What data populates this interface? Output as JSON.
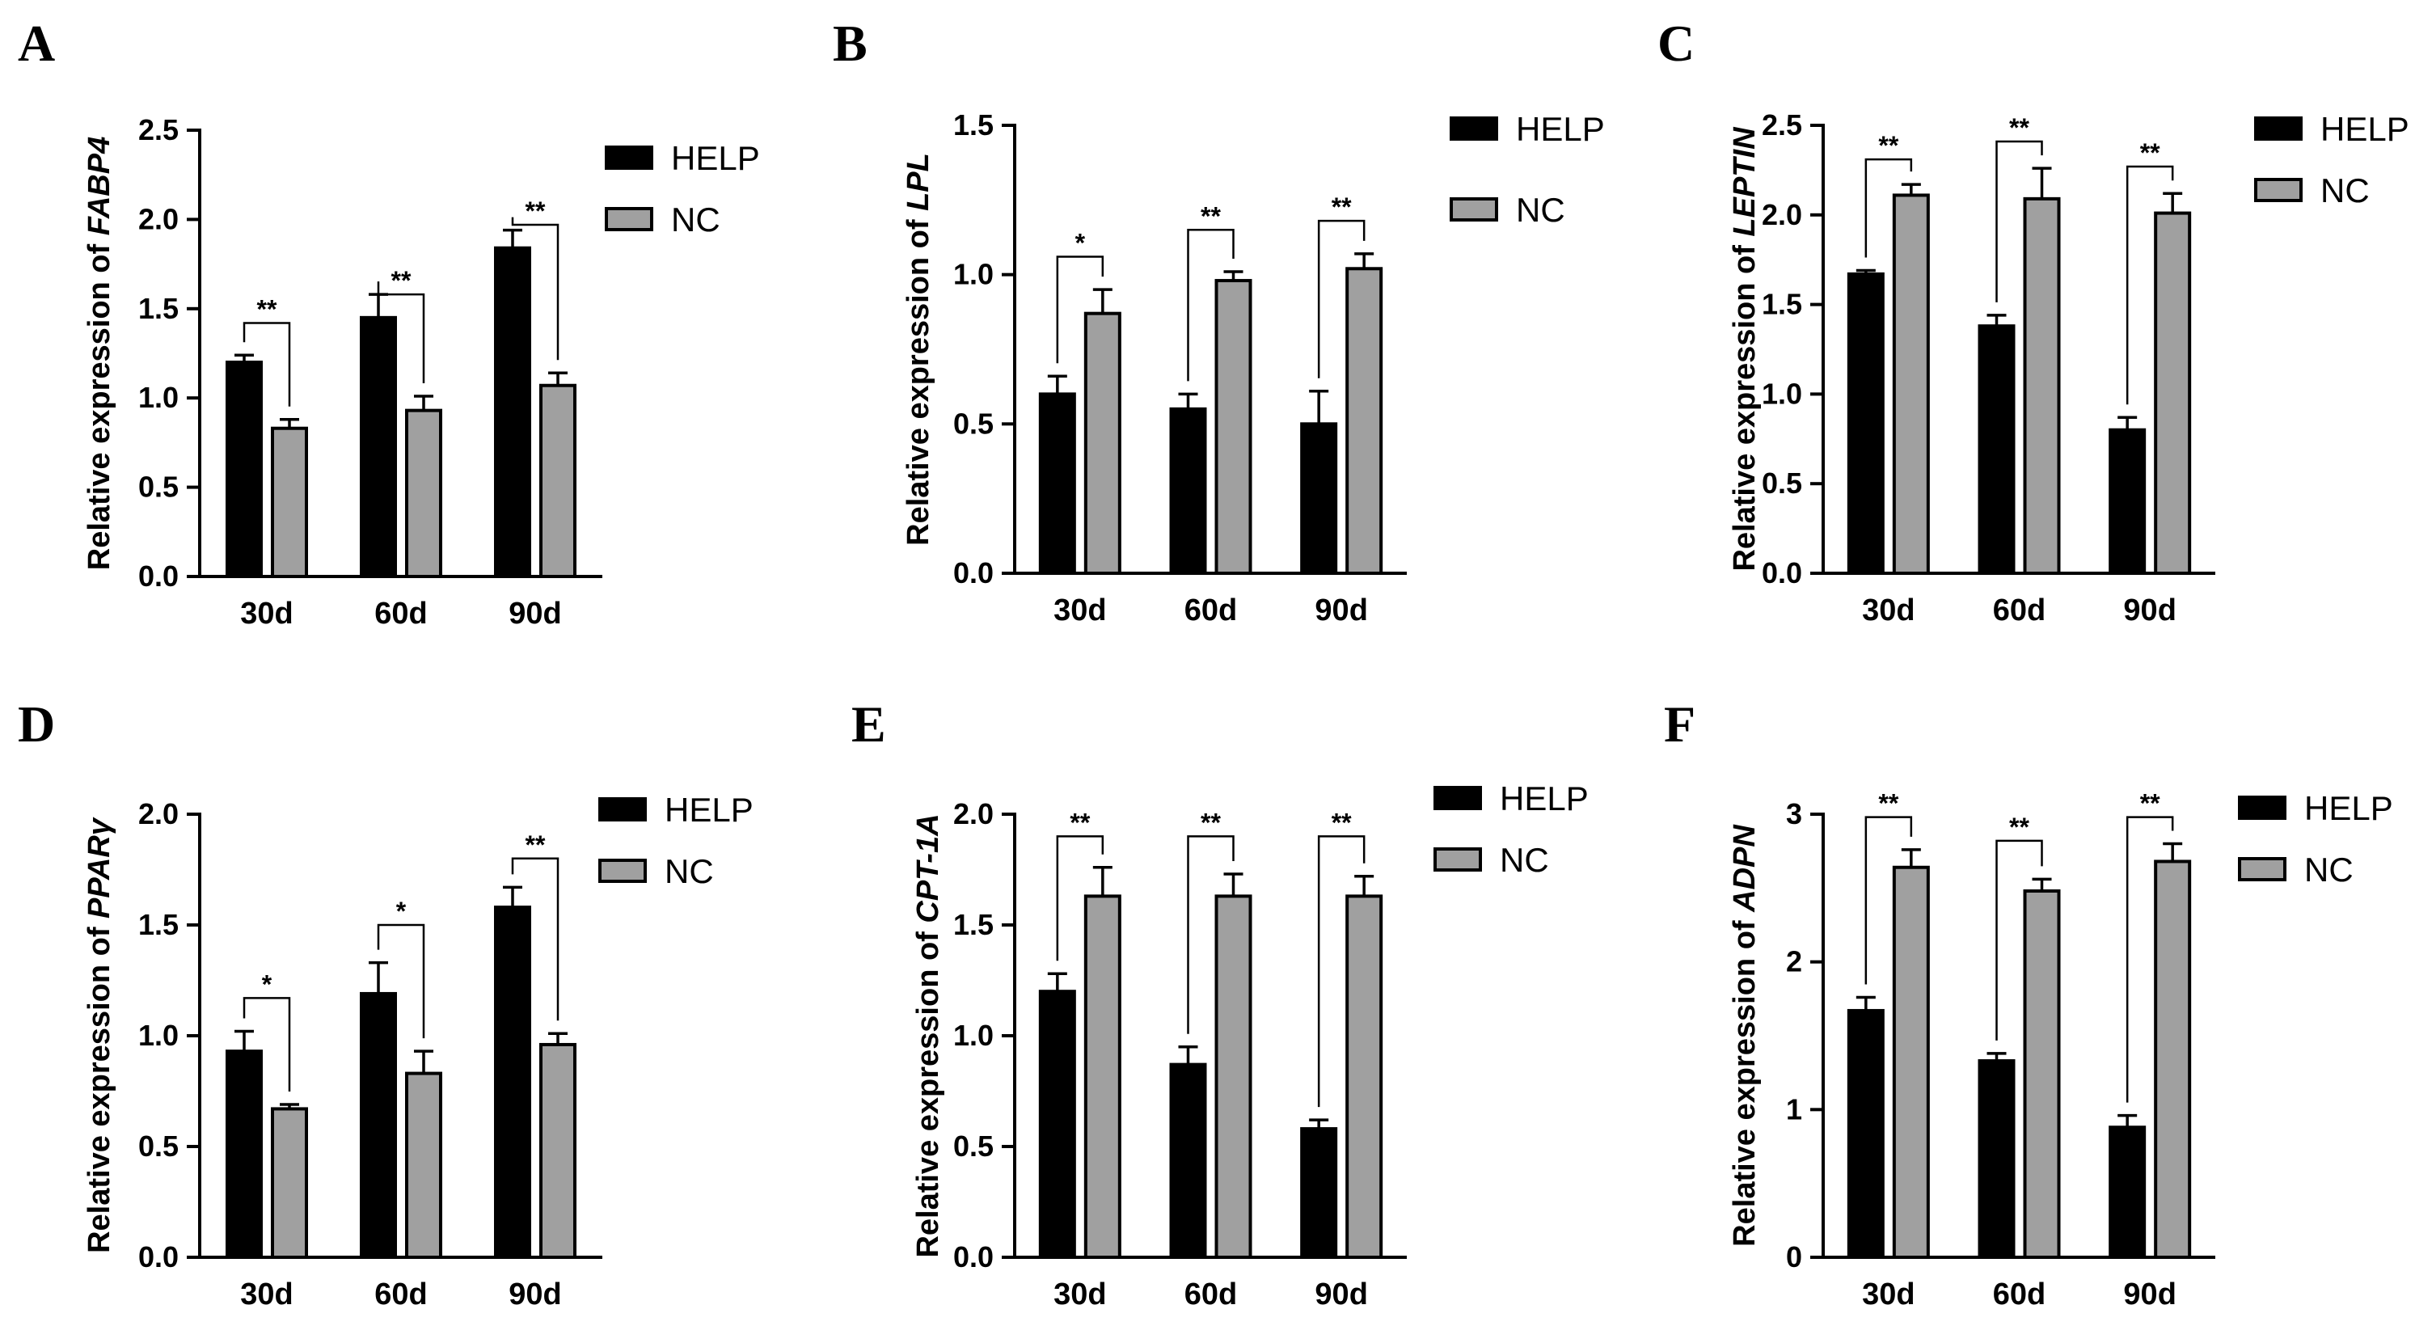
{
  "colors": {
    "help": "#000000",
    "nc": "#a0a0a0",
    "outline": "#000000"
  },
  "legend": {
    "series_a": "HELP",
    "series_b": "NC"
  },
  "chart_data": [
    {
      "panel": "A",
      "type": "bar",
      "ylabel_prefix": "Relative expression of ",
      "gene": "FABP4",
      "categories": [
        "30d",
        "60d",
        "90d"
      ],
      "yticks": [
        "0.0",
        "0.5",
        "1.0",
        "1.5",
        "2.0",
        "2.5"
      ],
      "ylim": [
        0,
        2.5
      ],
      "series": [
        {
          "name": "HELP",
          "values": [
            1.2,
            1.45,
            1.84
          ],
          "errors": [
            0.04,
            0.13,
            0.1
          ]
        },
        {
          "name": "NC",
          "values": [
            0.83,
            0.93,
            1.07
          ],
          "errors": [
            0.05,
            0.08,
            0.07
          ]
        }
      ],
      "significance": [
        "**",
        "**",
        "**"
      ],
      "bracket_tops": [
        1.42,
        1.58,
        1.97
      ]
    },
    {
      "panel": "B",
      "type": "bar",
      "ylabel_prefix": "Relative expression of ",
      "gene": "LPL",
      "categories": [
        "30d",
        "60d",
        "90d"
      ],
      "yticks": [
        "0.0",
        "0.5",
        "1.0",
        "1.5"
      ],
      "ylim": [
        0,
        1.5
      ],
      "series": [
        {
          "name": "HELP",
          "values": [
            0.6,
            0.55,
            0.5
          ],
          "errors": [
            0.06,
            0.05,
            0.11
          ]
        },
        {
          "name": "NC",
          "values": [
            0.87,
            0.98,
            1.02
          ],
          "errors": [
            0.08,
            0.03,
            0.05
          ]
        }
      ],
      "significance": [
        "*",
        "**",
        "**"
      ],
      "bracket_tops": [
        1.06,
        1.15,
        1.18
      ]
    },
    {
      "panel": "C",
      "type": "bar",
      "ylabel_prefix": "Relative expression of ",
      "gene": "LEPTIN",
      "categories": [
        "30d",
        "60d",
        "90d"
      ],
      "yticks": [
        "0.0",
        "0.5",
        "1.0",
        "1.5",
        "2.0",
        "2.5"
      ],
      "ylim": [
        0,
        2.5
      ],
      "series": [
        {
          "name": "HELP",
          "values": [
            1.67,
            1.38,
            0.8
          ],
          "errors": [
            0.02,
            0.06,
            0.07
          ]
        },
        {
          "name": "NC",
          "values": [
            2.11,
            2.09,
            2.01
          ],
          "errors": [
            0.06,
            0.17,
            0.11
          ]
        }
      ],
      "significance": [
        "**",
        "**",
        "**"
      ],
      "bracket_tops": [
        2.31,
        2.41,
        2.27
      ]
    },
    {
      "panel": "D",
      "type": "bar",
      "ylabel_prefix": "Relative expression of ",
      "gene": "PPARγ",
      "categories": [
        "30d",
        "60d",
        "90d"
      ],
      "yticks": [
        "0.0",
        "0.5",
        "1.0",
        "1.5",
        "2.0"
      ],
      "ylim": [
        0,
        2.0
      ],
      "series": [
        {
          "name": "HELP",
          "values": [
            0.93,
            1.19,
            1.58
          ],
          "errors": [
            0.09,
            0.14,
            0.09
          ]
        },
        {
          "name": "NC",
          "values": [
            0.67,
            0.83,
            0.96
          ],
          "errors": [
            0.02,
            0.1,
            0.05
          ]
        }
      ],
      "significance": [
        "*",
        "*",
        "**"
      ],
      "bracket_tops": [
        1.17,
        1.5,
        1.8
      ]
    },
    {
      "panel": "E",
      "type": "bar",
      "ylabel_prefix": "Relative expression of ",
      "gene": "CPT-1A",
      "categories": [
        "30d",
        "60d",
        "90d"
      ],
      "yticks": [
        "0.0",
        "0.5",
        "1.0",
        "1.5",
        "2.0"
      ],
      "ylim": [
        0,
        2.0
      ],
      "series": [
        {
          "name": "HELP",
          "values": [
            1.2,
            0.87,
            0.58
          ],
          "errors": [
            0.08,
            0.08,
            0.04
          ]
        },
        {
          "name": "NC",
          "values": [
            1.63,
            1.63,
            1.63
          ],
          "errors": [
            0.13,
            0.1,
            0.09
          ]
        }
      ],
      "significance": [
        "**",
        "**",
        "**"
      ],
      "bracket_tops": [
        1.9,
        1.9,
        1.9
      ]
    },
    {
      "panel": "F",
      "type": "bar",
      "ylabel_prefix": "Relative expression of ",
      "gene": "ADPN",
      "categories": [
        "30d",
        "60d",
        "90d"
      ],
      "yticks": [
        "0",
        "1",
        "2",
        "3"
      ],
      "ylim": [
        0,
        3
      ],
      "series": [
        {
          "name": "HELP",
          "values": [
            1.67,
            1.33,
            0.88
          ],
          "errors": [
            0.09,
            0.05,
            0.08
          ]
        },
        {
          "name": "NC",
          "values": [
            2.64,
            2.48,
            2.68
          ],
          "errors": [
            0.12,
            0.08,
            0.12
          ]
        }
      ],
      "significance": [
        "**",
        "**",
        "**"
      ],
      "bracket_tops": [
        2.98,
        2.82,
        2.98
      ]
    }
  ]
}
